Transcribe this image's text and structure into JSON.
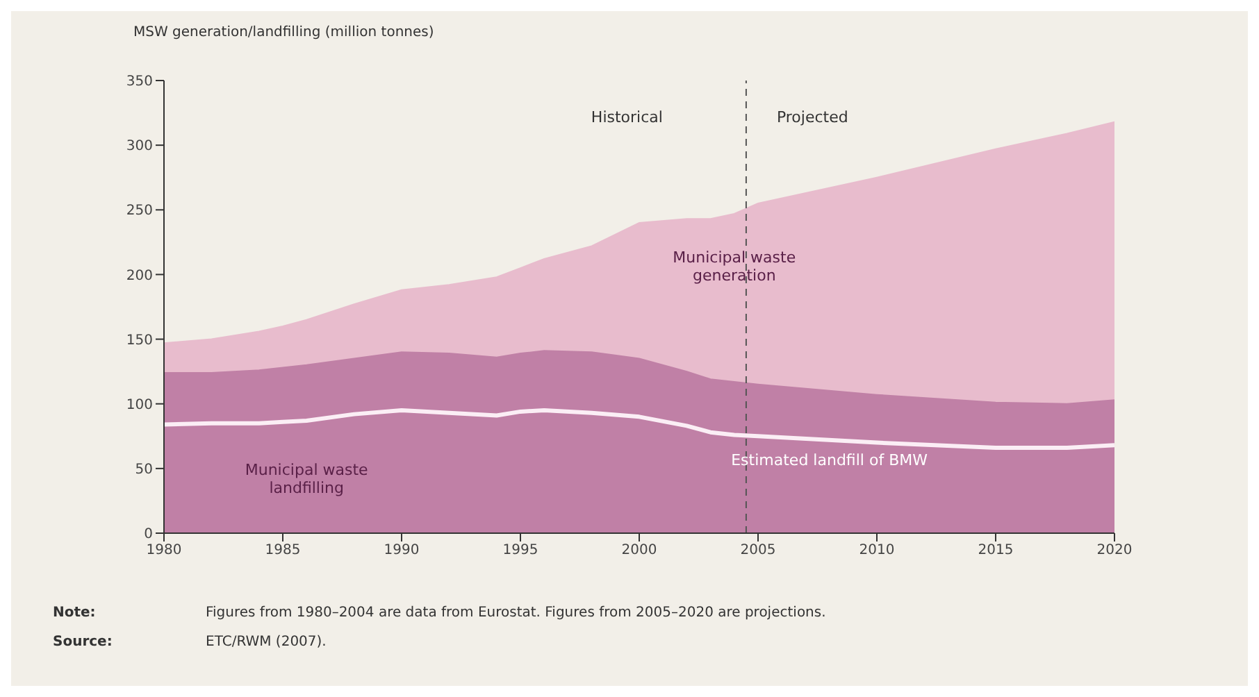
{
  "chart_data": {
    "type": "area",
    "ylabel": "MSW generation/landfilling (million tonnes)",
    "x": [
      1980,
      1982,
      1984,
      1985,
      1986,
      1988,
      1990,
      1992,
      1994,
      1995,
      1996,
      1998,
      2000,
      2002,
      2003,
      2004,
      2005,
      2010,
      2015,
      2018,
      2020
    ],
    "series": [
      {
        "name": "Municipal waste generation",
        "color": "#e8bccd",
        "values": [
          147,
          150,
          156,
          160,
          165,
          177,
          188,
          192,
          198,
          205,
          212,
          222,
          240,
          243,
          243,
          247,
          255,
          275,
          297,
          309,
          318
        ]
      },
      {
        "name": "Municipal waste landfilling",
        "color": "#c080a6",
        "values": [
          124,
          124,
          126,
          128,
          130,
          135,
          140,
          139,
          136,
          139,
          141,
          140,
          135,
          125,
          119,
          117,
          115,
          107,
          101,
          100,
          103
        ]
      },
      {
        "name": "Estimated landfill of BMW",
        "type": "line",
        "color": "#fbeef5",
        "values": [
          84,
          85,
          85,
          86,
          87,
          92,
          95,
          93,
          91,
          94,
          95,
          93,
          90,
          83,
          78,
          76,
          75,
          70,
          66,
          66,
          68
        ]
      }
    ],
    "xlim": [
      1980,
      2020
    ],
    "xticks": [
      1980,
      1985,
      1990,
      1995,
      2000,
      2005,
      2010,
      2015,
      2020
    ],
    "ylim": [
      0,
      350
    ],
    "yticks": [
      0,
      50,
      100,
      150,
      200,
      250,
      300,
      350
    ],
    "ref_lines": [
      {
        "axis": "x",
        "value": 2004.5,
        "color": "#555555",
        "line_style": "dashed"
      }
    ],
    "annotations": [
      "Historical",
      "Projected",
      "Note:\tFigures from 1980–2004 are data from Eurostat. Figures from 2005–2020 are projections.",
      "Source:\tETC/RWM (2007)."
    ]
  }
}
